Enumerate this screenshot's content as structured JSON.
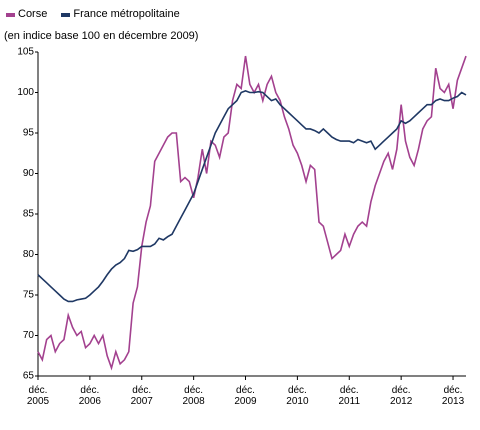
{
  "chart_data": {
    "type": "line",
    "subtitle": "(en indice base 100 en décembre 2009)",
    "categories": [
      "déc. 2005",
      null,
      null,
      null,
      null,
      null,
      null,
      null,
      null,
      null,
      null,
      null,
      "déc. 2006",
      null,
      null,
      null,
      null,
      null,
      null,
      null,
      null,
      null,
      null,
      null,
      "déc. 2007",
      null,
      null,
      null,
      null,
      null,
      null,
      null,
      null,
      null,
      null,
      null,
      "déc. 2008",
      null,
      null,
      null,
      null,
      null,
      null,
      null,
      null,
      null,
      null,
      null,
      "déc. 2009",
      null,
      null,
      null,
      null,
      null,
      null,
      null,
      null,
      null,
      null,
      null,
      "déc. 2010",
      null,
      null,
      null,
      null,
      null,
      null,
      null,
      null,
      null,
      null,
      null,
      "déc. 2011",
      null,
      null,
      null,
      null,
      null,
      null,
      null,
      null,
      null,
      null,
      null,
      "déc. 2012",
      null,
      null,
      null,
      null,
      null,
      null,
      null,
      null,
      null,
      null,
      null,
      "déc. 2013",
      null,
      null,
      null
    ],
    "series": [
      {
        "name": "Corse",
        "color": "#a3418f",
        "values": [
          68,
          67,
          69.5,
          70,
          68,
          69,
          69.5,
          72.5,
          71,
          70,
          70.5,
          68.5,
          69,
          70,
          69,
          70,
          67.5,
          66,
          68,
          66.5,
          67,
          68,
          74,
          76,
          81,
          84,
          86,
          91.5,
          92.5,
          93.5,
          94.5,
          95,
          95,
          89,
          89.5,
          89,
          87,
          89.5,
          93,
          90,
          94,
          93.5,
          92,
          94.5,
          95,
          99,
          101,
          100.5,
          104.5,
          101,
          100,
          101,
          99,
          101,
          102,
          100,
          99,
          97,
          95.5,
          93.5,
          92.5,
          91,
          89,
          91,
          90.5,
          84,
          83.5,
          81.5,
          79.5,
          80,
          80.5,
          82.5,
          81,
          82.5,
          83.5,
          84,
          83.5,
          86.5,
          88.5,
          90,
          91.5,
          92.5,
          90.5,
          93,
          98.5,
          94,
          92,
          91,
          93,
          95.5,
          96.5,
          97,
          103,
          100.5,
          100,
          101,
          98,
          101.5,
          103,
          104.5
        ]
      },
      {
        "name": "France métropolitaine",
        "color": "#1f3864",
        "values": [
          77.5,
          77,
          76.5,
          76,
          75.5,
          75,
          74.5,
          74.2,
          74.2,
          74.4,
          74.5,
          74.6,
          75,
          75.5,
          76,
          76.7,
          77.5,
          78.2,
          78.7,
          79,
          79.5,
          80.5,
          80.4,
          80.6,
          81,
          81,
          81,
          81.3,
          82,
          81.8,
          82.2,
          82.5,
          83.5,
          84.5,
          85.5,
          86.5,
          87.5,
          89,
          90.5,
          92,
          93.5,
          95,
          96,
          97,
          98,
          98.5,
          99,
          100,
          100.2,
          100,
          100,
          100.1,
          100,
          99.5,
          99,
          99.2,
          98.5,
          98,
          97.5,
          97,
          96.5,
          96,
          95.5,
          95.5,
          95.3,
          95,
          95.5,
          95,
          94.5,
          94.2,
          94,
          94,
          94,
          93.8,
          94.2,
          94,
          93.8,
          94,
          93,
          93.5,
          94,
          94.5,
          95,
          95.5,
          96.5,
          96.2,
          96.5,
          97,
          97.5,
          98,
          98.5,
          98.5,
          99,
          99.2,
          99,
          99,
          99.3,
          99.5,
          100,
          99.7
        ]
      }
    ],
    "ylim": [
      65,
      105
    ],
    "yticks": [
      65,
      70,
      75,
      80,
      85,
      90,
      95,
      100,
      105
    ],
    "grid": false
  }
}
